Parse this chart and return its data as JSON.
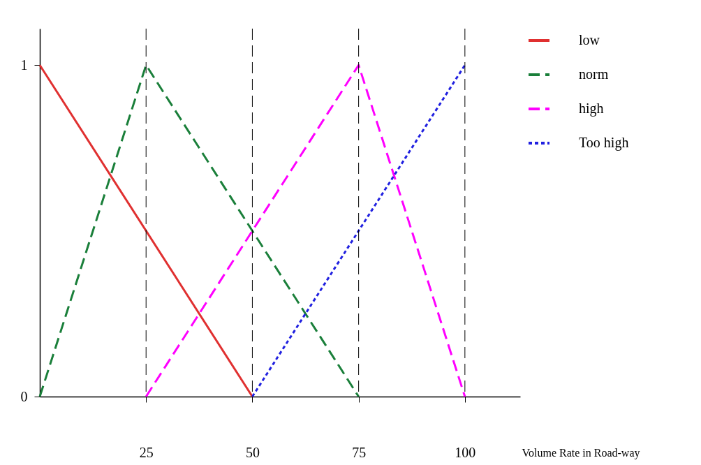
{
  "chart_data": {
    "type": "line",
    "xlabel": "Volume Rate in Road-way",
    "xlim": [
      0,
      113
    ],
    "ylim": [
      0,
      1.11
    ],
    "xticks": [
      25,
      50,
      75,
      100
    ],
    "yticks": [
      0,
      1
    ],
    "series": [
      {
        "name": "low",
        "color": "#e03030",
        "line_style": "solid",
        "x": [
          0,
          50
        ],
        "values": [
          1,
          0
        ]
      },
      {
        "name": "norm",
        "color": "#1a7f3a",
        "line_style": "dashed",
        "x": [
          0,
          25,
          75
        ],
        "values": [
          0,
          1,
          0
        ]
      },
      {
        "name": "high",
        "color": "#ff00ff",
        "line_style": "dashed",
        "x": [
          25,
          75,
          100
        ],
        "values": [
          0,
          1,
          0
        ]
      },
      {
        "name": "Too  high",
        "color": "#2020e0",
        "line_style": "dotted",
        "x": [
          50,
          100
        ],
        "values": [
          0,
          1
        ]
      }
    ],
    "ref_lines": [
      {
        "axis": "x",
        "value": 25,
        "color": "#000000",
        "line_style": "dashed"
      },
      {
        "axis": "x",
        "value": 50,
        "color": "#000000",
        "line_style": "dashed"
      },
      {
        "axis": "x",
        "value": 75,
        "color": "#000000",
        "line_style": "dashed"
      },
      {
        "axis": "x",
        "value": 100,
        "color": "#000000",
        "line_style": "dashed"
      }
    ],
    "grid": false,
    "legend": "right"
  }
}
